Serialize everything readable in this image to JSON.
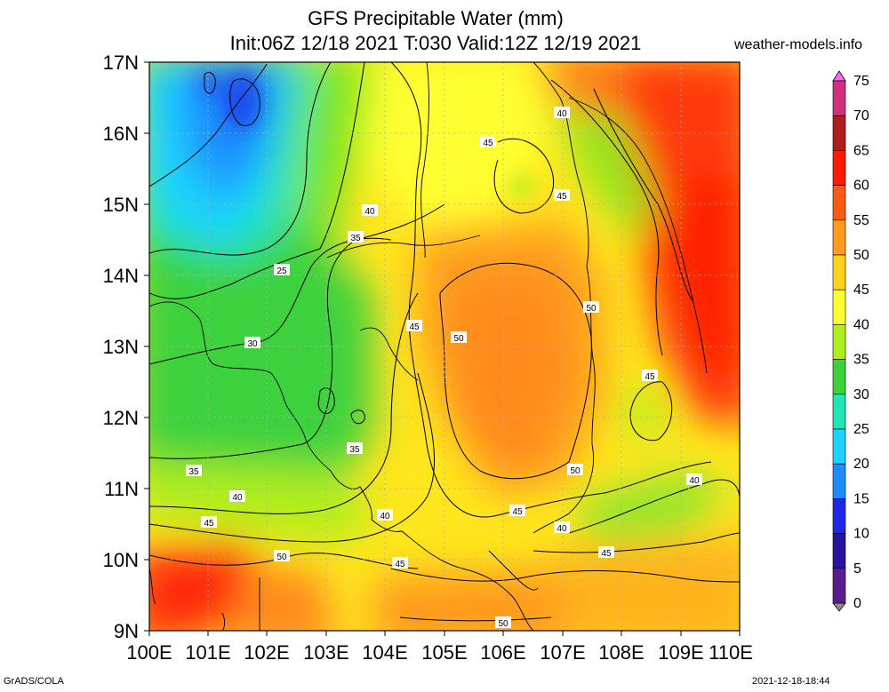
{
  "header": {
    "title_line1": "GFS Precipitable Water (mm)",
    "title_line2": "Init:06Z 12/18 2021 T:030 Valid:12Z 12/19 2021",
    "site": "weather-models.info"
  },
  "footer": {
    "left": "GrADS/COLA",
    "right": "2021-12-18-18:44"
  },
  "axes": {
    "lat_labels": [
      "17N",
      "16N",
      "15N",
      "14N",
      "13N",
      "12N",
      "11N",
      "10N",
      "9N"
    ],
    "lon_labels": [
      "100E",
      "101E",
      "102E",
      "103E",
      "104E",
      "105E",
      "106E",
      "107E",
      "108E",
      "109E",
      "110E"
    ]
  },
  "colorbar": {
    "labels": [
      "75",
      "70",
      "65",
      "60",
      "55",
      "50",
      "45",
      "40",
      "35",
      "30",
      "25",
      "20",
      "15",
      "10",
      "5",
      "0"
    ],
    "colors": [
      "#ff66ff",
      "#d2307c",
      "#b01e1e",
      "#ff1a00",
      "#ff5a14",
      "#ff9a1e",
      "#ffd21e",
      "#ffff32",
      "#b0ee1e",
      "#3cd23c",
      "#1ee6b4",
      "#1ed2ff",
      "#1e8cff",
      "#1e28e6",
      "#2814a0",
      "#5a1e8c",
      "#8c8c8c"
    ]
  },
  "contour_labels": [
    {
      "text": "40"
    },
    {
      "text": "45"
    },
    {
      "text": "45"
    },
    {
      "text": "40"
    },
    {
      "text": "35"
    },
    {
      "text": "25"
    },
    {
      "text": "30"
    },
    {
      "text": "45"
    },
    {
      "text": "50"
    },
    {
      "text": "50"
    },
    {
      "text": "45"
    },
    {
      "text": "35"
    },
    {
      "text": "35"
    },
    {
      "text": "40"
    },
    {
      "text": "40"
    },
    {
      "text": "50"
    },
    {
      "text": "45"
    },
    {
      "text": "40"
    },
    {
      "text": "45"
    },
    {
      "text": "40"
    },
    {
      "text": "50"
    },
    {
      "text": "45"
    },
    {
      "text": "45"
    },
    {
      "text": "50"
    }
  ]
}
